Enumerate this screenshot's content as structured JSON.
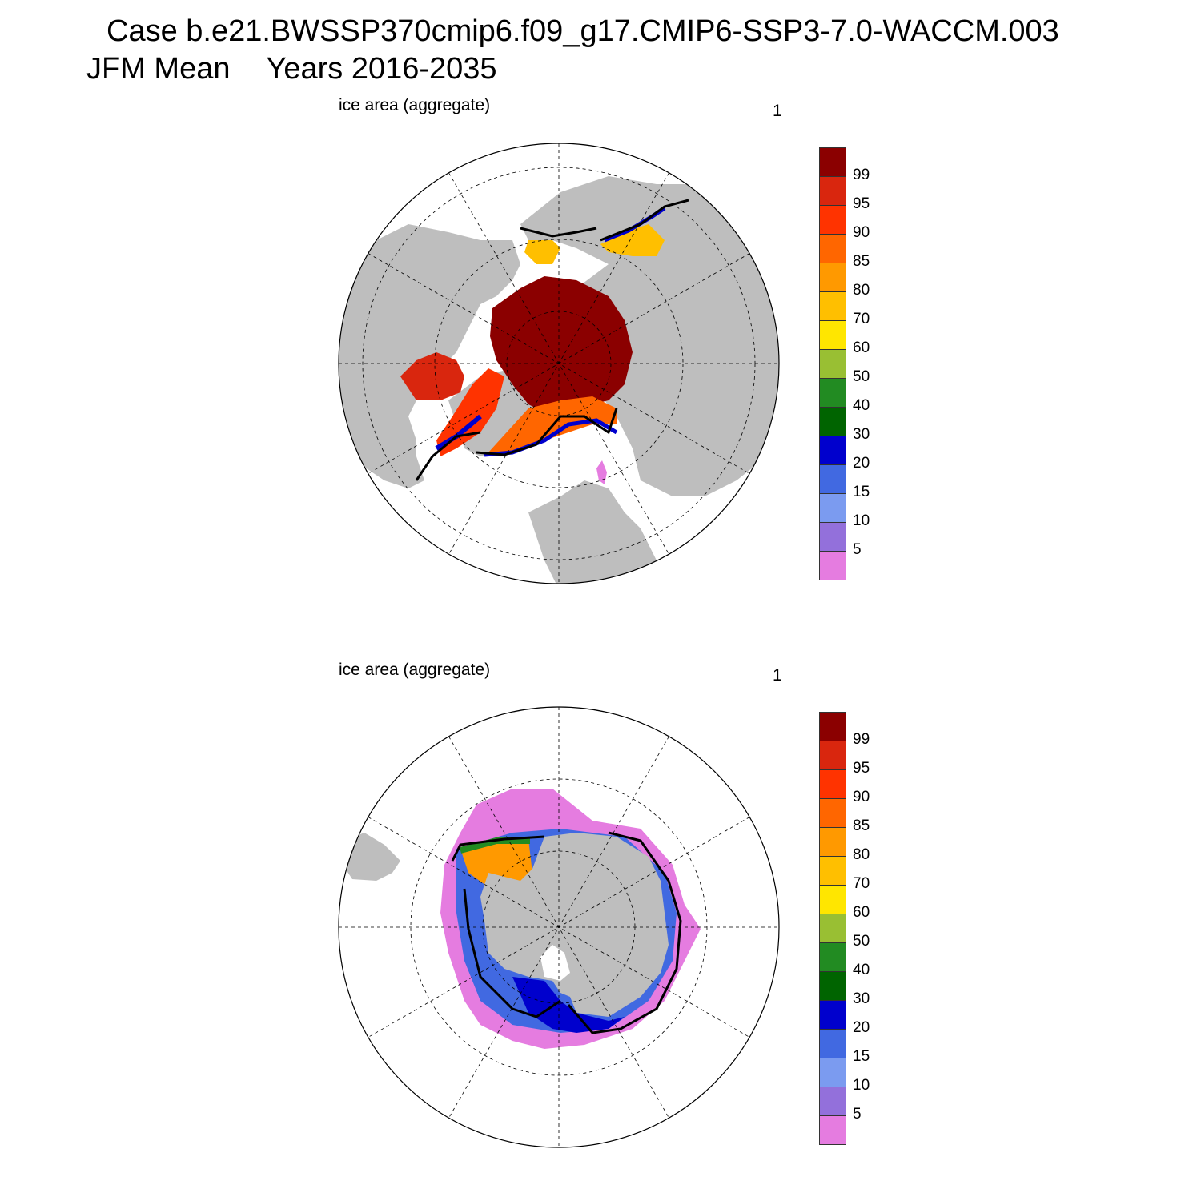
{
  "title": {
    "case": "Case b.e21.BWSSP370cmip6.f09_g17.CMIP6-SSP3-7.0-WACCM.003",
    "season": "JFM Mean",
    "years": "Years 2016-2035"
  },
  "panels": [
    {
      "label": "ice area  (aggregate)",
      "number": "1",
      "hemisphere": "north"
    },
    {
      "label": "ice area  (aggregate)",
      "number": "1",
      "hemisphere": "south"
    }
  ],
  "colorbar": {
    "colors": [
      "#8b0000",
      "#d9260e",
      "#ff3300",
      "#ff6600",
      "#ff9900",
      "#ffbf00",
      "#ffe600",
      "#99bf33",
      "#228b22",
      "#006400",
      "#0000cd",
      "#4169e1",
      "#7b9bf0",
      "#9370db",
      "#e57ce0"
    ],
    "labels": [
      "99",
      "95",
      "90",
      "85",
      "80",
      "70",
      "60",
      "50",
      "40",
      "30",
      "20",
      "15",
      "10",
      "5"
    ]
  },
  "map_colors": {
    "land": "#bebebe",
    "ocean": "#ffffff",
    "ice_edge": "#000000"
  }
}
